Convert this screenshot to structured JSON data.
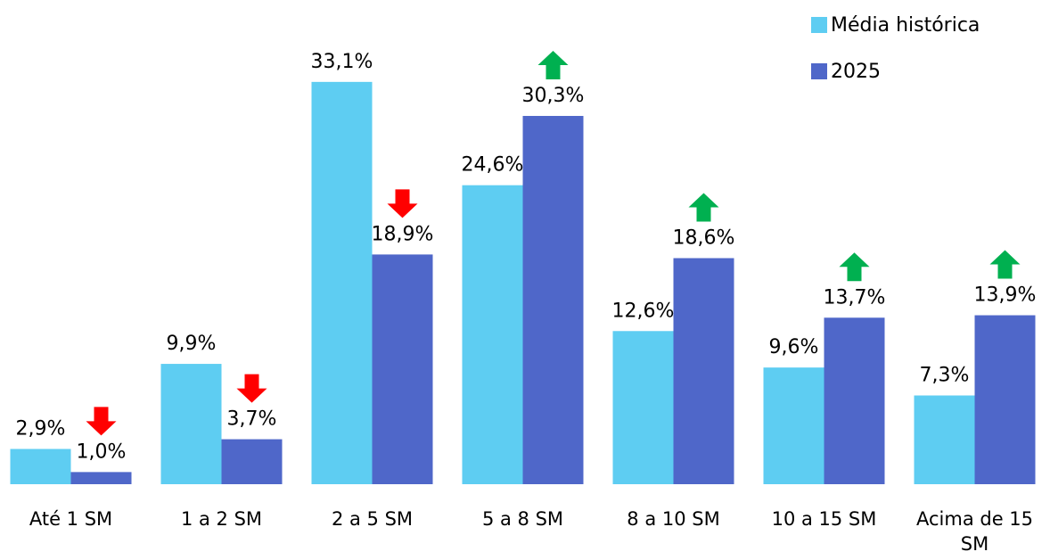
{
  "chart_data": {
    "type": "bar",
    "categories": [
      "Até 1 SM",
      "1 a 2 SM",
      "2 a 5 SM",
      "5 a 8 SM",
      "8 a 10 SM",
      "10 a 15 SM",
      "Acima de 15 SM"
    ],
    "series": [
      {
        "name": "Média histórica",
        "color": "#5ecdf2",
        "values": [
          2.9,
          9.9,
          33.1,
          24.6,
          12.6,
          9.6,
          7.3
        ],
        "value_labels": [
          "2,9%",
          "9,9%",
          "33,1%",
          "24,6%",
          "12,6%",
          "9,6%",
          "7,3%"
        ]
      },
      {
        "name": "2025",
        "color": "#4f67c9",
        "values": [
          1.0,
          3.7,
          18.9,
          30.3,
          18.6,
          13.7,
          13.9
        ],
        "value_labels": [
          "1,0%",
          "3,7%",
          "18,9%",
          "30,3%",
          "18,6%",
          "13,7%",
          "13,9%"
        ]
      }
    ],
    "legend": "top-right"
  }
}
